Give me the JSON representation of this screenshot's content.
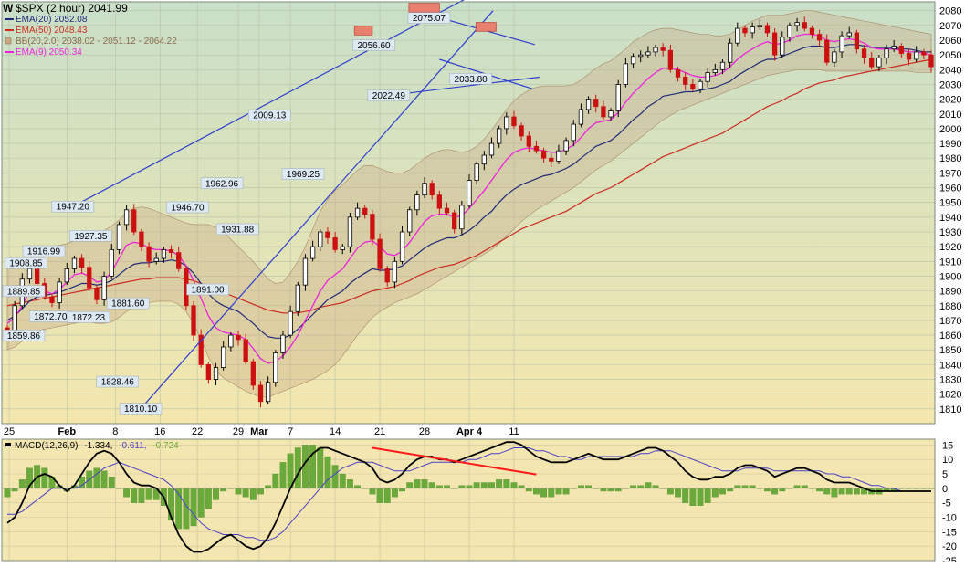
{
  "colors": {
    "price_bg_top": "#c9dfc8",
    "price_bg_bottom": "#f4e7ad",
    "macd_bg": "#f3e6b0",
    "band_fill": "#c8a783",
    "ema20": "#1f2a78",
    "ema50": "#cc2a1f",
    "ema9": "#ee22dd",
    "trend": "#2f3fd0",
    "up_candle": "#000000",
    "down_candle": "#cc1111",
    "macd_line": "#000000",
    "signal_line": "#4a3fc8",
    "hist": "#6aaa3a",
    "macd_trend": "#ff1a1a",
    "resistance_box": "#e88070",
    "label_box": "#dde9f2"
  },
  "header": {
    "ticker_line": "$SPX (2 hour) 2041.99",
    "legend": [
      {
        "label": "EMA(20) 2052.08",
        "color": "#1f2a78",
        "kind": "line"
      },
      {
        "label": "EMA(50) 2048.43",
        "color": "#cc2a1f",
        "kind": "line"
      },
      {
        "label": "BB(20,2.0) 2038.02 - 2051.12 - 2064.22",
        "color": "#8a6b4a",
        "kind": "band"
      },
      {
        "label": "EMA(9) 2050.34",
        "color": "#ee22dd",
        "kind": "line"
      }
    ]
  },
  "macd_legend": {
    "name": "MACD(12,26,9)",
    "v1": "-1.334,",
    "v2": "-0.611,",
    "v3": "-0.724",
    "v2_color": "#4a3fc8",
    "v3_color": "#6aaa3a"
  },
  "chart_data": [
    {
      "type": "candlestick",
      "title": "$SPX (2 hour) 2041.99",
      "ylim": [
        1800,
        2086
      ],
      "yticks": [
        1810,
        1820,
        1830,
        1840,
        1850,
        1860,
        1870,
        1880,
        1890,
        1900,
        1910,
        1920,
        1930,
        1940,
        1950,
        1960,
        1970,
        1980,
        1990,
        2000,
        2010,
        2020,
        2030,
        2040,
        2050,
        2060,
        2070,
        2080
      ],
      "xtick_labels": [
        "25",
        "Feb",
        "8",
        "16",
        "22",
        "29",
        "Mar",
        "7",
        "14",
        "21",
        "28",
        "Apr 4",
        "11"
      ],
      "xtick_positions": [
        0.25,
        8,
        14.5,
        20.5,
        25.5,
        31,
        33.8,
        38,
        44,
        50,
        56,
        62,
        68
      ],
      "pivots": [
        {
          "label": "1859.86",
          "x": 0,
          "y": 1859.86
        },
        {
          "label": "1889.85",
          "x": 0.3,
          "y": 1889.85
        },
        {
          "label": "1908.85",
          "x": 2.5,
          "y": 1908.85
        },
        {
          "label": "1916.99",
          "x": 4.9,
          "y": 1916.99
        },
        {
          "label": "1872.70",
          "x": 5.8,
          "y": 1872.7
        },
        {
          "label": "1947.20",
          "x": 8.8,
          "y": 1947.2
        },
        {
          "label": "1927.35",
          "x": 11.2,
          "y": 1927.35
        },
        {
          "label": "1872.23",
          "x": 10.9,
          "y": 1872.23
        },
        {
          "label": "1881.60",
          "x": 16.2,
          "y": 1881.6
        },
        {
          "label": "1828.46",
          "x": 14.8,
          "y": 1828.46
        },
        {
          "label": "1810.10",
          "x": 17.9,
          "y": 1810.1
        },
        {
          "label": "1946.70",
          "x": 24.2,
          "y": 1946.7
        },
        {
          "label": "1891.00",
          "x": 26.9,
          "y": 1891
        },
        {
          "label": "1962.96",
          "x": 28.8,
          "y": 1962.96
        },
        {
          "label": "1931.88",
          "x": 30.9,
          "y": 1931.88
        },
        {
          "label": "2009.13",
          "x": 35.2,
          "y": 2009.13
        },
        {
          "label": "1969.25",
          "x": 39.7,
          "y": 1969.25
        },
        {
          "label": "2056.60",
          "x": 49.2,
          "y": 2056.6
        },
        {
          "label": "2022.49",
          "x": 51.2,
          "y": 2022.49
        },
        {
          "label": "2075.07",
          "x": 56.6,
          "y": 2075.07
        },
        {
          "label": "2033.80",
          "x": 62.2,
          "y": 2033.8
        }
      ],
      "close": [
        1862,
        1880,
        1898,
        1905,
        1895,
        1886,
        1882,
        1896,
        1905,
        1912,
        1906,
        1892,
        1884,
        1900,
        1918,
        1935,
        1945,
        1930,
        1920,
        1910,
        1912,
        1918,
        1916,
        1905,
        1880,
        1860,
        1840,
        1830,
        1838,
        1852,
        1860,
        1857,
        1842,
        1826,
        1815,
        1828,
        1848,
        1860,
        1876,
        1894,
        1912,
        1920,
        1930,
        1926,
        1918,
        1920,
        1940,
        1946,
        1942,
        1925,
        1905,
        1896,
        1910,
        1930,
        1945,
        1955,
        1963,
        1955,
        1946,
        1943,
        1932,
        1948,
        1965,
        1976,
        1982,
        1990,
        2000,
        2008,
        2002,
        1995,
        1988,
        1985,
        1980,
        1978,
        1985,
        1992,
        2003,
        2013,
        2020,
        2015,
        2008,
        2012,
        2030,
        2044,
        2049,
        2050,
        2052,
        2055,
        2053,
        2040,
        2035,
        2030,
        2027,
        2032,
        2038,
        2040,
        2045,
        2058,
        2068,
        2065,
        2069,
        2070,
        2065,
        2050,
        2062,
        2070,
        2072,
        2068,
        2064,
        2060,
        2045,
        2052,
        2063,
        2065,
        2054,
        2048,
        2042,
        2048,
        2054,
        2056,
        2051,
        2047,
        2052,
        2050,
        2042
      ],
      "ema20": [
        1870,
        1873,
        1878,
        1883,
        1886,
        1887,
        1888,
        1889,
        1891,
        1893,
        1895,
        1895,
        1894,
        1895,
        1897,
        1901,
        1905,
        1908,
        1909,
        1909,
        1910,
        1910,
        1911,
        1910,
        1907,
        1902,
        1895,
        1888,
        1883,
        1880,
        1878,
        1876,
        1872,
        1868,
        1863,
        1859,
        1858,
        1858,
        1860,
        1864,
        1869,
        1874,
        1879,
        1884,
        1887,
        1890,
        1895,
        1899,
        1902,
        1905,
        1904,
        1904,
        1905,
        1907,
        1911,
        1915,
        1919,
        1922,
        1924,
        1926,
        1926,
        1928,
        1931,
        1935,
        1940,
        1944,
        1950,
        1955,
        1959,
        1962,
        1964,
        1966,
        1968,
        1969,
        1971,
        1973,
        1976,
        1980,
        1984,
        1988,
        1990,
        1992,
        1996,
        2001,
        2006,
        2010,
        2015,
        2018,
        2022,
        2023,
        2024,
        2025,
        2025,
        2026,
        2027,
        2028,
        2030,
        2032,
        2036,
        2039,
        2042,
        2045,
        2047,
        2047,
        2049,
        2051,
        2053,
        2055,
        2056,
        2056,
        2055,
        2055,
        2056,
        2057,
        2057,
        2056,
        2055,
        2055,
        2055,
        2055,
        2054,
        2054,
        2053,
        2052,
        2052
      ],
      "ema50": [
        1880,
        1881,
        1882,
        1883,
        1884,
        1885,
        1886,
        1887,
        1888,
        1889,
        1890,
        1891,
        1892,
        1893,
        1894,
        1895,
        1896,
        1897,
        1898,
        1898,
        1899,
        1899,
        1899,
        1899,
        1898,
        1897,
        1895,
        1893,
        1891,
        1889,
        1887,
        1885,
        1883,
        1881,
        1879,
        1877,
        1876,
        1875,
        1875,
        1875,
        1876,
        1877,
        1879,
        1880,
        1881,
        1882,
        1884,
        1886,
        1888,
        1890,
        1891,
        1892,
        1893,
        1895,
        1897,
        1900,
        1902,
        1904,
        1906,
        1907,
        1908,
        1910,
        1912,
        1914,
        1917,
        1920,
        1923,
        1926,
        1929,
        1932,
        1934,
        1936,
        1938,
        1940,
        1942,
        1944,
        1947,
        1950,
        1953,
        1956,
        1958,
        1960,
        1963,
        1966,
        1969,
        1972,
        1975,
        1978,
        1981,
        1983,
        1985,
        1987,
        1989,
        1991,
        1993,
        1995,
        1997,
        2000,
        2003,
        2006,
        2009,
        2012,
        2015,
        2017,
        2019,
        2022,
        2024,
        2027,
        2029,
        2031,
        2032,
        2033,
        2035,
        2036,
        2037,
        2038,
        2039,
        2040,
        2041,
        2042,
        2043,
        2044,
        2045,
        2046,
        2047
      ],
      "ema9": [
        1868,
        1872,
        1880,
        1890,
        1892,
        1890,
        1888,
        1891,
        1896,
        1901,
        1902,
        1900,
        1896,
        1897,
        1903,
        1912,
        1921,
        1923,
        1922,
        1919,
        1918,
        1918,
        1917,
        1914,
        1907,
        1897,
        1885,
        1873,
        1865,
        1862,
        1861,
        1860,
        1857,
        1851,
        1844,
        1841,
        1842,
        1846,
        1852,
        1860,
        1870,
        1880,
        1890,
        1897,
        1901,
        1905,
        1912,
        1919,
        1923,
        1924,
        1920,
        1915,
        1914,
        1917,
        1923,
        1930,
        1937,
        1941,
        1942,
        1942,
        1940,
        1941,
        1946,
        1952,
        1958,
        1965,
        1972,
        1979,
        1984,
        1986,
        1987,
        1986,
        1985,
        1984,
        1984,
        1986,
        1989,
        1994,
        2000,
        2004,
        2005,
        2006,
        2011,
        2018,
        2024,
        2029,
        2034,
        2038,
        2041,
        2041,
        2040,
        2038,
        2036,
        2035,
        2035,
        2036,
        2038,
        2042,
        2047,
        2051,
        2054,
        2057,
        2059,
        2057,
        2058,
        2060,
        2063,
        2064,
        2064,
        2063,
        2060,
        2059,
        2060,
        2061,
        2060,
        2058,
        2055,
        2054,
        2054,
        2054,
        2053,
        2052,
        2052,
        2051,
        2050
      ],
      "bb_upper": [
        1905,
        1908,
        1912,
        1916,
        1918,
        1919,
        1920,
        1921,
        1922,
        1924,
        1926,
        1928,
        1929,
        1931,
        1934,
        1938,
        1943,
        1946,
        1947,
        1946,
        1944,
        1942,
        1940,
        1938,
        1936,
        1935,
        1935,
        1935,
        1933,
        1930,
        1925,
        1920,
        1915,
        1910,
        1904,
        1898,
        1895,
        1896,
        1902,
        1910,
        1920,
        1932,
        1944,
        1952,
        1958,
        1962,
        1967,
        1972,
        1975,
        1975,
        1973,
        1971,
        1970,
        1970,
        1972,
        1976,
        1980,
        1983,
        1985,
        1986,
        1985,
        1984,
        1985,
        1988,
        1993,
        1999,
        2006,
        2013,
        2019,
        2023,
        2026,
        2028,
        2029,
        2029,
        2029,
        2029,
        2030,
        2033,
        2037,
        2041,
        2044,
        2046,
        2050,
        2054,
        2059,
        2062,
        2065,
        2067,
        2068,
        2068,
        2067,
        2066,
        2065,
        2064,
        2064,
        2063,
        2063,
        2064,
        2067,
        2070,
        2073,
        2075,
        2077,
        2077,
        2077,
        2078,
        2079,
        2080,
        2080,
        2079,
        2078,
        2077,
        2076,
        2075,
        2074,
        2073,
        2072,
        2071,
        2070,
        2069,
        2068,
        2067,
        2066,
        2065,
        2064
      ],
      "bb_lower": [
        1850,
        1852,
        1856,
        1860,
        1863,
        1864,
        1865,
        1866,
        1867,
        1868,
        1869,
        1869,
        1868,
        1868,
        1869,
        1872,
        1876,
        1879,
        1881,
        1882,
        1883,
        1883,
        1883,
        1881,
        1876,
        1868,
        1857,
        1845,
        1836,
        1831,
        1828,
        1825,
        1822,
        1820,
        1818,
        1818,
        1820,
        1822,
        1824,
        1826,
        1828,
        1830,
        1833,
        1836,
        1840,
        1846,
        1853,
        1860,
        1866,
        1872,
        1876,
        1879,
        1882,
        1884,
        1886,
        1888,
        1891,
        1894,
        1897,
        1900,
        1903,
        1906,
        1909,
        1912,
        1915,
        1918,
        1922,
        1927,
        1932,
        1937,
        1941,
        1945,
        1948,
        1951,
        1954,
        1957,
        1960,
        1964,
        1968,
        1972,
        1975,
        1978,
        1982,
        1986,
        1990,
        1994,
        1998,
        2002,
        2006,
        2009,
        2012,
        2014,
        2016,
        2018,
        2020,
        2022,
        2024,
        2026,
        2028,
        2030,
        2032,
        2034,
        2036,
        2037,
        2038,
        2039,
        2040,
        2040,
        2040,
        2040,
        2039,
        2039,
        2039,
        2039,
        2039,
        2039,
        2039,
        2039,
        2039,
        2039,
        2039,
        2039,
        2038,
        2038,
        2038
      ],
      "trendlines": [
        {
          "x1": 8.8,
          "y1": 1947.2,
          "x2": 61.5,
          "y2": 2088
        },
        {
          "x1": 17.9,
          "y1": 1810.1,
          "x2": 65.2,
          "y2": 2080
        },
        {
          "x1": 51.2,
          "y1": 2022.5,
          "x2": 71.5,
          "y2": 2035
        },
        {
          "x1": 57.5,
          "y1": 2076,
          "x2": 70.8,
          "y2": 2057
        },
        {
          "x1": 58.0,
          "y1": 2047,
          "x2": 70.5,
          "y2": 2027
        }
      ],
      "resistance_boxes": [
        {
          "x1": 46.6,
          "x2": 49.0,
          "y1": 2063.5,
          "y2": 2069.5
        },
        {
          "x1": 53.9,
          "x2": 58.0,
          "y1": 2079,
          "y2": 2085
        },
        {
          "x1": 62.9,
          "x2": 65.6,
          "y1": 2066,
          "y2": 2072
        }
      ]
    },
    {
      "type": "macd",
      "title": "MACD(12,26,9)",
      "ylim": [
        -25,
        17
      ],
      "yticks": [
        15,
        10,
        5,
        0,
        -5,
        -10,
        -15,
        -20,
        -25
      ],
      "macd": [
        -12,
        -10,
        -5,
        1,
        4,
        5,
        4,
        1,
        -1,
        1,
        5,
        9,
        12,
        13,
        12,
        9,
        5,
        2,
        1,
        1,
        0,
        -3,
        -10,
        -16,
        -20,
        -22,
        -22,
        -21,
        -19,
        -17,
        -16,
        -18,
        -20,
        -21,
        -20,
        -17,
        -12,
        -6,
        0,
        5,
        9,
        12,
        14,
        14,
        13,
        12,
        11,
        10,
        9,
        7,
        3,
        2,
        3,
        5,
        8,
        10,
        11,
        11,
        10,
        10,
        9,
        10,
        11,
        12,
        13,
        14,
        15,
        16,
        16,
        15,
        13,
        11,
        10,
        9,
        9,
        9,
        10,
        11,
        12,
        11,
        10,
        10,
        10,
        11,
        12,
        13,
        14,
        14,
        13,
        11,
        9,
        6,
        4,
        3,
        3,
        4,
        4,
        5,
        7,
        8,
        8,
        7,
        6,
        4,
        5,
        6,
        7,
        7,
        6,
        5,
        3,
        2,
        2,
        2,
        1,
        0,
        -1,
        -1,
        -1,
        -1,
        -1,
        -1,
        -1,
        -1,
        -1
      ],
      "signal": [
        -9,
        -9,
        -8,
        -6,
        -4,
        -2,
        0,
        0,
        0,
        0,
        1,
        3,
        5,
        7,
        8,
        9,
        8,
        7,
        6,
        5,
        4,
        3,
        1,
        -2,
        -6,
        -9,
        -12,
        -14,
        -15,
        -16,
        -16,
        -16,
        -17,
        -17,
        -18,
        -18,
        -17,
        -15,
        -12,
        -9,
        -6,
        -3,
        0,
        3,
        5,
        7,
        8,
        9,
        9,
        9,
        8,
        7,
        6,
        6,
        6,
        7,
        8,
        9,
        9,
        9,
        9,
        9,
        10,
        10,
        11,
        12,
        12,
        13,
        14,
        14,
        14,
        13,
        13,
        12,
        11,
        11,
        10,
        10,
        11,
        11,
        11,
        11,
        11,
        11,
        11,
        12,
        12,
        13,
        13,
        13,
        12,
        11,
        10,
        9,
        8,
        7,
        6,
        6,
        6,
        7,
        7,
        7,
        7,
        6,
        6,
        6,
        6,
        6,
        6,
        6,
        5,
        5,
        4,
        4,
        3,
        2,
        1,
        1,
        0,
        0,
        -1,
        -1,
        -1,
        -1,
        -1
      ],
      "macd_trendline": {
        "x1": 49.0,
        "y1": 14,
        "x2": 71.0,
        "y2": 4.8
      }
    }
  ]
}
